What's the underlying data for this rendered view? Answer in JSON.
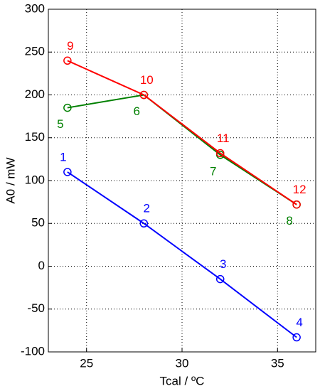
{
  "chart_data": {
    "type": "line",
    "x_label": "Tcal / ºC",
    "y_label": "A0 / mW",
    "x": [
      24,
      28,
      32,
      36
    ],
    "series": [
      {
        "color": "#0000ff",
        "values": [
          110,
          50,
          -15,
          -83
        ],
        "labels": [
          "1",
          "2",
          "3",
          "4"
        ]
      },
      {
        "color": "#008000",
        "values": [
          185,
          200,
          130,
          72
        ],
        "labels": [
          "5",
          "6",
          "7",
          "8"
        ]
      },
      {
        "color": "#ff0000",
        "values": [
          240,
          200,
          132,
          72
        ],
        "labels": [
          "9",
          "10",
          "11",
          "12"
        ]
      }
    ],
    "xlim": [
      23,
      37
    ],
    "xticks": [
      25,
      30,
      35
    ],
    "ylim": [
      -100,
      300
    ],
    "yticks": [
      -100,
      -50,
      0,
      50,
      100,
      150,
      200,
      250,
      300
    ],
    "grid": true
  }
}
